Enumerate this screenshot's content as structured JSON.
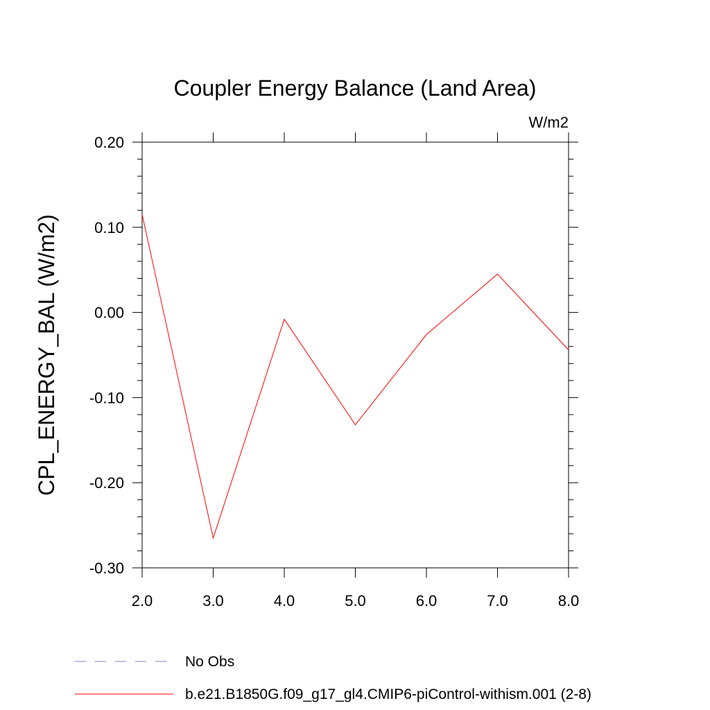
{
  "chart_data": {
    "type": "line",
    "title": "Coupler Energy Balance (Land Area)",
    "units_label": "W/m2",
    "ylabel": "CPL_ENERGY_BAL  (W/m2)",
    "xlabel": "",
    "xlim": [
      2.0,
      8.0
    ],
    "ylim": [
      -0.3,
      0.2
    ],
    "x_ticks": [
      "2.0",
      "3.0",
      "4.0",
      "5.0",
      "6.0",
      "7.0",
      "8.0"
    ],
    "y_ticks": [
      "0.20",
      "0.10",
      "0.00",
      "-0.10",
      "-0.20",
      "-0.30"
    ],
    "series": [
      {
        "name": "b.e21.B1850G.f09_g17_gl4.CMIP6-piControl-withism.001 (2-8)",
        "color": "#ff0000",
        "x": [
          2.0,
          3.0,
          4.0,
          5.0,
          6.0,
          7.0,
          8.0
        ],
        "values": [
          0.115,
          -0.265,
          -0.008,
          -0.132,
          -0.026,
          0.045,
          -0.044
        ]
      }
    ],
    "legend": [
      {
        "label": "No Obs",
        "color": "#8a7fc8",
        "style": "dashed"
      },
      {
        "label": "b.e21.B1850G.f09_g17_gl4.CMIP6-piControl-withism.001 (2-8)",
        "color": "#ff0000",
        "style": "solid"
      }
    ],
    "legend_position": "bottom-left"
  }
}
